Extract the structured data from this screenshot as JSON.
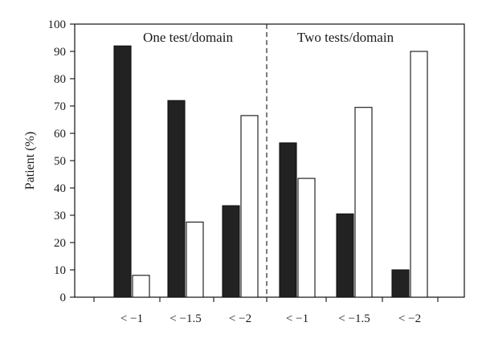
{
  "chart_data": {
    "type": "bar",
    "ylabel": "Patient (%)",
    "ylim": [
      0,
      100
    ],
    "yticks": [
      0,
      10,
      20,
      30,
      40,
      50,
      60,
      70,
      80,
      90,
      100
    ],
    "grid": false,
    "panels": [
      {
        "label": "One test/domain",
        "categories": [
          "< −1",
          "< −1.5",
          "< −2"
        ],
        "series": [
          {
            "fill": "#222222",
            "values": [
              92,
              72,
              33.5
            ]
          },
          {
            "fill": "#ffffff",
            "values": [
              8,
              27.5,
              66.5
            ]
          }
        ]
      },
      {
        "label": "Two tests/domain",
        "categories": [
          "< −1",
          "< −1.5",
          "< −2"
        ],
        "series": [
          {
            "fill": "#222222",
            "values": [
              56.5,
              30.5,
              10
            ]
          },
          {
            "fill": "#ffffff",
            "values": [
              43.5,
              69.5,
              90
            ]
          }
        ]
      }
    ],
    "divider": "dashed"
  }
}
